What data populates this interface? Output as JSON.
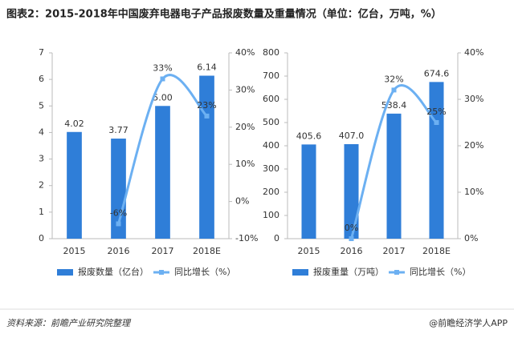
{
  "title": "图表2：2015-2018年中国废弃电器电子产品报废数量及重量情况（单位：亿台，万吨，%）",
  "footer": {
    "source": "资料来源：前瞻产业研究院整理",
    "credit": "@前瞻经济学人APP"
  },
  "chart_data": [
    {
      "type": "bar-line",
      "categories": [
        "2015",
        "2016",
        "2017",
        "2018E"
      ],
      "ylim": [
        0,
        7
      ],
      "yticks": [
        0,
        1,
        2,
        3,
        4,
        5,
        6,
        7
      ],
      "y2lim": [
        -10,
        40
      ],
      "y2ticks": [
        {
          "value": -10,
          "label": "-10%"
        },
        {
          "value": 0,
          "label": "0%"
        },
        {
          "value": 10,
          "label": "10%"
        },
        {
          "value": 20,
          "label": "20%"
        },
        {
          "value": 30,
          "label": "30%"
        },
        {
          "value": 40,
          "label": "40%"
        }
      ],
      "series": [
        {
          "name": "报废数量（亿台）",
          "type": "bar",
          "color": "#2f7ed8",
          "values": [
            4.02,
            3.77,
            5.0,
            6.14
          ],
          "value_labels": [
            "4.02",
            "3.77",
            "5.00",
            "6.14"
          ]
        },
        {
          "name": "同比增长（%）",
          "type": "line",
          "axis": "y2",
          "color": "#6cb0f2",
          "values": [
            null,
            -6,
            33,
            23
          ],
          "value_labels": [
            null,
            "-6%",
            "33%",
            "23%"
          ]
        }
      ]
    },
    {
      "type": "bar-line",
      "categories": [
        "2015",
        "2016",
        "2017",
        "2018E"
      ],
      "ylim": [
        0,
        800
      ],
      "yticks": [
        0,
        100,
        200,
        300,
        400,
        500,
        600,
        700,
        800
      ],
      "y2lim": [
        0,
        40
      ],
      "y2ticks": [
        {
          "value": 0,
          "label": "0%"
        },
        {
          "value": 10,
          "label": "10%"
        },
        {
          "value": 20,
          "label": "20%"
        },
        {
          "value": 30,
          "label": "30%"
        },
        {
          "value": 40,
          "label": "40%"
        }
      ],
      "series": [
        {
          "name": "报废重量（万吨）",
          "type": "bar",
          "color": "#2f7ed8",
          "values": [
            405.6,
            407.0,
            538.4,
            674.6
          ],
          "value_labels": [
            "405.6",
            "407.0",
            "538.4",
            "674.6"
          ]
        },
        {
          "name": "同比增长（%）",
          "type": "line",
          "axis": "y2",
          "color": "#6cb0f2",
          "values": [
            null,
            0,
            32,
            25
          ],
          "value_labels": [
            null,
            "0%",
            "32%",
            "25%"
          ]
        }
      ]
    }
  ]
}
